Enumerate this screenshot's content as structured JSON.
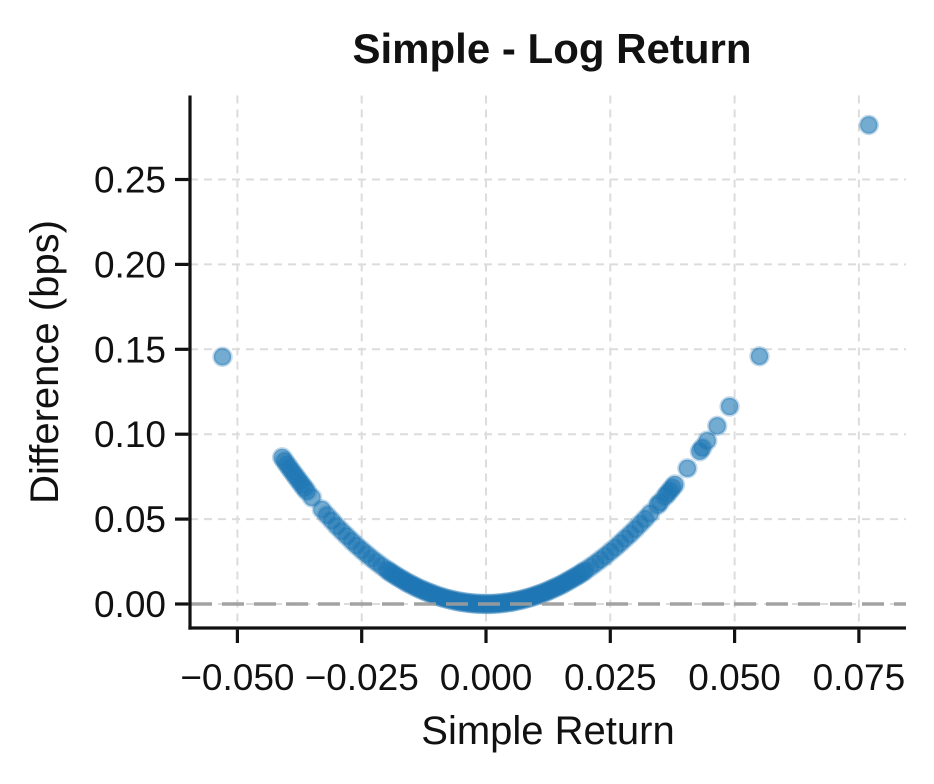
{
  "chart_data": {
    "type": "scatter",
    "title": "Simple - Log Return",
    "xlabel": "Simple Return",
    "ylabel": "Difference (bps)",
    "x_ticks": [
      -0.05,
      -0.025,
      0.0,
      0.025,
      0.05,
      0.075
    ],
    "x_tick_labels": [
      "−0.050",
      "−0.025",
      "0.000",
      "0.025",
      "0.050",
      "0.075"
    ],
    "y_ticks": [
      0.0,
      0.05,
      0.1,
      0.15,
      0.2,
      0.25
    ],
    "y_tick_labels": [
      "0.00",
      "0.05",
      "0.10",
      "0.15",
      "0.20",
      "0.25"
    ],
    "xlim": [
      -0.0595,
      0.0845
    ],
    "ylim": [
      -0.0141,
      0.2986
    ],
    "grid": true,
    "legend": false,
    "zero_line_y": 0.0,
    "style": {
      "marker_color": "#1f77b4",
      "grid_color": "#dcdcdc",
      "zero_line_color": "#9c9c9c",
      "text_color": "#111111",
      "background": "#ffffff",
      "marker_radius": 8.6
    },
    "points": [
      [
        -0.053,
        0.1456
      ],
      [
        -0.041,
        0.0864
      ],
      [
        -0.0405,
        0.0843
      ],
      [
        -0.04,
        0.0822
      ],
      [
        -0.0395,
        0.0801
      ],
      [
        -0.039,
        0.0781
      ],
      [
        -0.0385,
        0.0761
      ],
      [
        -0.038,
        0.0741
      ],
      [
        -0.0375,
        0.0721
      ],
      [
        -0.037,
        0.0702
      ],
      [
        -0.0365,
        0.0683
      ],
      [
        -0.036,
        0.0664
      ],
      [
        -0.035,
        0.0627
      ],
      [
        -0.033,
        0.0557
      ],
      [
        -0.032,
        0.0523
      ],
      [
        -0.031,
        0.0491
      ],
      [
        -0.03,
        0.0459
      ],
      [
        -0.029,
        0.0429
      ],
      [
        -0.028,
        0.04
      ],
      [
        -0.027,
        0.0371
      ],
      [
        -0.026,
        0.0344
      ],
      [
        -0.025,
        0.0318
      ],
      [
        -0.024,
        0.0293
      ],
      [
        -0.023,
        0.0269
      ],
      [
        -0.022,
        0.0246
      ],
      [
        -0.021,
        0.0224
      ],
      [
        -0.02,
        0.0203
      ],
      [
        -0.0195,
        0.0192
      ],
      [
        -0.019,
        0.0183
      ],
      [
        -0.0185,
        0.0173
      ],
      [
        -0.018,
        0.0164
      ],
      [
        -0.0175,
        0.0155
      ],
      [
        -0.017,
        0.0146
      ],
      [
        -0.0165,
        0.0138
      ],
      [
        -0.016,
        0.0129
      ],
      [
        -0.0155,
        0.0121
      ],
      [
        -0.015,
        0.0114
      ],
      [
        -0.0145,
        0.0106
      ],
      [
        -0.014,
        0.0099
      ],
      [
        -0.0135,
        0.0092
      ],
      [
        -0.013,
        0.0085
      ],
      [
        -0.0125,
        0.0079
      ],
      [
        -0.012,
        0.0073
      ],
      [
        -0.0115,
        0.0067
      ],
      [
        -0.011,
        0.0061
      ],
      [
        -0.0105,
        0.0056
      ],
      [
        -0.01,
        0.005
      ],
      [
        -0.0095,
        0.0045
      ],
      [
        -0.009,
        0.0041
      ],
      [
        -0.0085,
        0.0036
      ],
      [
        -0.008,
        0.0032
      ],
      [
        -0.0075,
        0.0028
      ],
      [
        -0.007,
        0.0025
      ],
      [
        -0.0065,
        0.0021
      ],
      [
        -0.006,
        0.0018
      ],
      [
        -0.0055,
        0.0015
      ],
      [
        -0.005,
        0.0013
      ],
      [
        -0.0045,
        0.001
      ],
      [
        -0.004,
        0.0008
      ],
      [
        -0.0035,
        0.0006
      ],
      [
        -0.003,
        0.0005
      ],
      [
        -0.0025,
        0.0003
      ],
      [
        -0.002,
        0.0002
      ],
      [
        -0.0015,
        0.0001
      ],
      [
        -0.001,
        0.0001
      ],
      [
        -0.0005,
        0.0
      ],
      [
        0.0,
        0.0
      ],
      [
        0.0005,
        0.0
      ],
      [
        0.001,
        0.0
      ],
      [
        0.0015,
        0.0001
      ],
      [
        0.002,
        0.0002
      ],
      [
        0.0025,
        0.0003
      ],
      [
        0.003,
        0.0004
      ],
      [
        0.0035,
        0.0006
      ],
      [
        0.004,
        0.0008
      ],
      [
        0.0045,
        0.001
      ],
      [
        0.005,
        0.0012
      ],
      [
        0.0055,
        0.0015
      ],
      [
        0.006,
        0.0018
      ],
      [
        0.0065,
        0.0021
      ],
      [
        0.007,
        0.0024
      ],
      [
        0.0075,
        0.0028
      ],
      [
        0.008,
        0.0032
      ],
      [
        0.0085,
        0.0036
      ],
      [
        0.009,
        0.004
      ],
      [
        0.0095,
        0.0045
      ],
      [
        0.01,
        0.005
      ],
      [
        0.0105,
        0.0055
      ],
      [
        0.011,
        0.006
      ],
      [
        0.0115,
        0.0066
      ],
      [
        0.012,
        0.0071
      ],
      [
        0.0125,
        0.0078
      ],
      [
        0.013,
        0.0084
      ],
      [
        0.0135,
        0.0091
      ],
      [
        0.014,
        0.0097
      ],
      [
        0.0145,
        0.0104
      ],
      [
        0.015,
        0.0111
      ],
      [
        0.0155,
        0.0119
      ],
      [
        0.016,
        0.0127
      ],
      [
        0.0165,
        0.0135
      ],
      [
        0.017,
        0.0143
      ],
      [
        0.0175,
        0.0152
      ],
      [
        0.018,
        0.016
      ],
      [
        0.0185,
        0.0169
      ],
      [
        0.019,
        0.0178
      ],
      [
        0.0195,
        0.0188
      ],
      [
        0.02,
        0.0197
      ],
      [
        0.021,
        0.0218
      ],
      [
        0.022,
        0.0239
      ],
      [
        0.023,
        0.0261
      ],
      [
        0.024,
        0.0283
      ],
      [
        0.025,
        0.0308
      ],
      [
        0.026,
        0.0332
      ],
      [
        0.027,
        0.0358
      ],
      [
        0.028,
        0.0385
      ],
      [
        0.029,
        0.0412
      ],
      [
        0.03,
        0.0441
      ],
      [
        0.031,
        0.0471
      ],
      [
        0.032,
        0.0501
      ],
      [
        0.033,
        0.0533
      ],
      [
        0.0345,
        0.0582
      ],
      [
        0.035,
        0.0599
      ],
      [
        0.036,
        0.0633
      ],
      [
        0.0365,
        0.065
      ],
      [
        0.037,
        0.0668
      ],
      [
        0.0375,
        0.0686
      ],
      [
        0.038,
        0.0704
      ],
      [
        0.0405,
        0.0799
      ],
      [
        0.043,
        0.0899
      ],
      [
        0.0435,
        0.092
      ],
      [
        0.0445,
        0.0962
      ],
      [
        0.0465,
        0.1049
      ],
      [
        0.049,
        0.1163
      ],
      [
        0.055,
        0.1459
      ],
      [
        0.077,
        0.2821
      ]
    ]
  }
}
